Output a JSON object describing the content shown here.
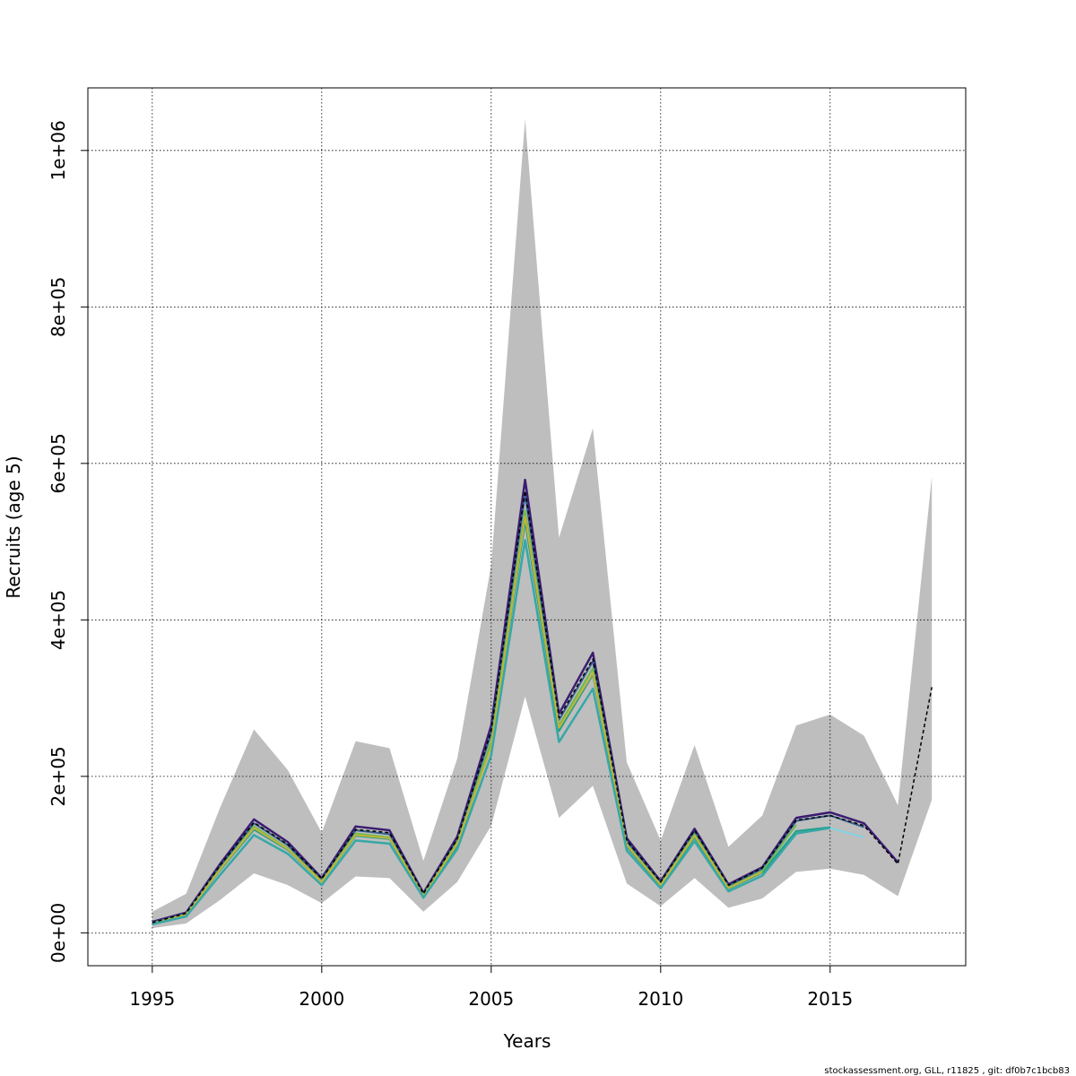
{
  "chart_data": {
    "type": "line",
    "xlabel": "Years",
    "ylabel": "Recruits (age 5)",
    "xlim": [
      1993.1,
      2019.0
    ],
    "ylim": [
      -42000,
      1080000
    ],
    "x_ticks": [
      1995,
      2000,
      2005,
      2010,
      2015
    ],
    "x_tick_labels": [
      "1995",
      "2000",
      "2005",
      "2010",
      "2015"
    ],
    "y_ticks": [
      0,
      200000,
      400000,
      600000,
      800000,
      1000000
    ],
    "y_tick_labels": [
      "0e+00",
      "2e+05",
      "4e+05",
      "6e+05",
      "8e+05",
      "1e+06"
    ],
    "grid": true,
    "footer": "stockassessment.org, GLL, r11825 , git: df0b7c1bcb83",
    "band": {
      "color": "#bebebe",
      "x": [
        1995,
        1996,
        1997,
        1998,
        1999,
        2000,
        2001,
        2002,
        2003,
        2004,
        2005,
        2006,
        2007,
        2008,
        2009,
        2010,
        2011,
        2012,
        2013,
        2014,
        2015,
        2016,
        2017,
        2018
      ],
      "upper": [
        27000,
        50000,
        160000,
        260000,
        208000,
        128000,
        245000,
        236000,
        92000,
        223000,
        470000,
        1040000,
        505000,
        645000,
        218000,
        118000,
        240000,
        110000,
        150000,
        265000,
        279000,
        252000,
        163000,
        583000
      ],
      "lower": [
        6000,
        12000,
        42000,
        76000,
        61000,
        38000,
        72000,
        70000,
        27000,
        65000,
        137000,
        302000,
        147000,
        188000,
        63000,
        34000,
        70000,
        32000,
        44000,
        78000,
        82000,
        74000,
        47000,
        170000
      ]
    },
    "series": [
      {
        "color": "#3b1c72",
        "width": 2.5,
        "dashed": false,
        "x": [
          1995,
          1996,
          1997,
          1998,
          1999,
          2000,
          2001,
          2002,
          2003,
          2004,
          2005,
          2006,
          2007,
          2008,
          2009,
          2010,
          2011,
          2012,
          2013,
          2014,
          2015,
          2016,
          2017
        ],
        "values": [
          14000,
          26000,
          88000,
          145000,
          116000,
          70000,
          136000,
          131000,
          51000,
          123000,
          265000,
          579000,
          280000,
          358000,
          121000,
          66000,
          133000,
          62000,
          84000,
          147000,
          154000,
          140000,
          90000
        ]
      },
      {
        "color": "#355e8d",
        "width": 2,
        "dashed": false,
        "x": [
          1995,
          1996,
          1997,
          1998,
          1999,
          2000,
          2001,
          2002,
          2003,
          2004,
          2005,
          2006,
          2007,
          2008,
          2009,
          2010,
          2011,
          2012,
          2013,
          2014,
          2015,
          2016
        ],
        "values": [
          13000,
          25000,
          85000,
          140000,
          112000,
          68000,
          131000,
          126000,
          49000,
          119000,
          255000,
          560000,
          272000,
          347000,
          117000,
          64000,
          129000,
          60000,
          82000,
          143000,
          150000,
          135000
        ]
      },
      {
        "color": "#1f9e89",
        "width": 2,
        "dashed": false,
        "x": [
          1995,
          1996,
          1997,
          1998,
          1999,
          2000,
          2001,
          2002,
          2003,
          2004,
          2005,
          2006,
          2007,
          2008,
          2009,
          2010,
          2011,
          2012,
          2013,
          2014,
          2015
        ],
        "values": [
          12000,
          23000,
          80000,
          132000,
          106000,
          65000,
          124000,
          120000,
          47000,
          112000,
          240000,
          525000,
          258000,
          330000,
          110000,
          60000,
          122000,
          56000,
          77000,
          130000,
          135000
        ]
      },
      {
        "color": "#6cba4d",
        "width": 2,
        "dashed": false,
        "x": [
          1995,
          1996,
          1997,
          1998,
          1999,
          2000,
          2001,
          2002,
          2003,
          2004,
          2005,
          2006,
          2007,
          2008,
          2009,
          2010,
          2011,
          2012,
          2013,
          2014
        ],
        "values": [
          12000,
          24000,
          82000,
          136000,
          108000,
          66000,
          127000,
          122000,
          48000,
          116000,
          245000,
          540000,
          265000,
          338000,
          113000,
          62000,
          126000,
          58000,
          79000,
          138000
        ]
      },
      {
        "color": "#c2b33a",
        "width": 2,
        "dashed": false,
        "x": [
          1995,
          1996,
          1997,
          1998,
          1999,
          2000,
          2001,
          2002,
          2003,
          2004,
          2005,
          2006,
          2007,
          2008,
          2009,
          2010,
          2011,
          2012,
          2013
        ],
        "values": [
          12000,
          23000,
          81000,
          134000,
          107000,
          65000,
          125000,
          121000,
          47000,
          114000,
          238000,
          532000,
          262000,
          332000,
          112000,
          61000,
          124000,
          57000,
          78000
        ]
      },
      {
        "color": "#36a8a6",
        "width": 2.5,
        "dashed": false,
        "x": [
          1995,
          1996,
          1997,
          1998,
          1999,
          2000,
          2001,
          2002,
          2003,
          2004,
          2005,
          2006,
          2007,
          2008,
          2009,
          2010,
          2011,
          2012,
          2013,
          2014,
          2015
        ],
        "values": [
          11000,
          21000,
          74000,
          125000,
          101000,
          61000,
          118000,
          114000,
          45000,
          107000,
          227000,
          502000,
          244000,
          312000,
          105000,
          57000,
          117000,
          53000,
          73000,
          127000,
          134000
        ]
      },
      {
        "color": "#7fd4e4",
        "width": 2,
        "dashed": false,
        "x": [
          2015,
          2016
        ],
        "values": [
          134000,
          122000
        ]
      },
      {
        "color": "#000000",
        "width": 1.5,
        "dashed": true,
        "x": [
          1995,
          1996,
          1997,
          1998,
          1999,
          2000,
          2001,
          2002,
          2003,
          2004,
          2005,
          2006,
          2007,
          2008,
          2009,
          2010,
          2011,
          2012,
          2013,
          2014,
          2015,
          2016,
          2017,
          2018
        ],
        "values": [
          13000,
          25000,
          86000,
          141000,
          113000,
          69000,
          132000,
          128000,
          50000,
          120000,
          258000,
          565000,
          275000,
          350000,
          118000,
          65000,
          131000,
          61000,
          83000,
          144000,
          150000,
          137000,
          88000,
          314000
        ]
      }
    ]
  }
}
